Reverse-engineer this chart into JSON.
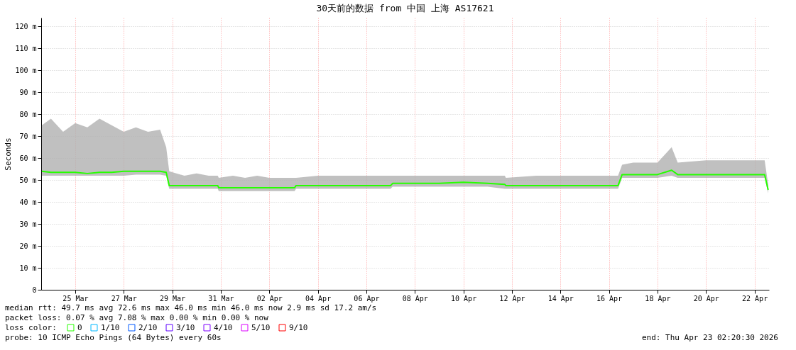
{
  "chart_data": {
    "type": "line",
    "title": "30天前的数据 from 中国 上海 AS17621",
    "ylabel": "Seconds",
    "x": [
      "2026-03-24T03:00",
      "2026-03-24T12:00",
      "2026-03-25T00:00",
      "2026-03-25T12:00",
      "2026-03-26T00:00",
      "2026-03-26T12:00",
      "2026-03-27T00:00",
      "2026-03-27T12:00",
      "2026-03-28T00:00",
      "2026-03-28T12:00",
      "2026-03-29T00:00",
      "2026-03-29T06:00",
      "2026-03-29T09:00",
      "2026-03-30T00:00",
      "2026-03-30T12:00",
      "2026-03-31T00:00",
      "2026-03-31T09:00",
      "2026-03-31T10:00",
      "2026-04-01T00:00",
      "2026-04-01T12:00",
      "2026-04-02T00:00",
      "2026-04-02T12:00",
      "2026-04-03T00:00",
      "2026-04-03T13:00",
      "2026-04-03T14:30",
      "2026-04-04T12:00",
      "2026-04-05T12:00",
      "2026-04-06T12:00",
      "2026-04-07T12:00",
      "2026-04-07T14:00",
      "2026-04-08T12:00",
      "2026-04-09T12:00",
      "2026-04-10T12:00",
      "2026-04-11T12:00",
      "2026-04-12T05:00",
      "2026-04-12T06:00",
      "2026-04-13T12:00",
      "2026-04-14T12:00",
      "2026-04-15T12:00",
      "2026-04-16T12:00",
      "2026-04-16T21:00",
      "2026-04-17T01:00",
      "2026-04-17T12:00",
      "2026-04-18T12:00",
      "2026-04-19T02:00",
      "2026-04-19T08:00",
      "2026-04-20T12:00",
      "2026-04-21T12:00",
      "2026-04-22T12:00",
      "2026-04-22T22:00",
      "2026-04-23T01:30"
    ],
    "xlim": [
      "2026-03-24T02:20",
      "2026-04-23T02:20"
    ],
    "xticks": [
      {
        "value": "2026-03-25T12:00",
        "label": "25 Mar"
      },
      {
        "value": "2026-03-27T12:00",
        "label": "27 Mar"
      },
      {
        "value": "2026-03-29T12:00",
        "label": "29 Mar"
      },
      {
        "value": "2026-03-31T12:00",
        "label": "31 Mar"
      },
      {
        "value": "2026-04-02T12:00",
        "label": "02 Apr"
      },
      {
        "value": "2026-04-04T12:00",
        "label": "04 Apr"
      },
      {
        "value": "2026-04-06T12:00",
        "label": "06 Apr"
      },
      {
        "value": "2026-04-08T12:00",
        "label": "08 Apr"
      },
      {
        "value": "2026-04-10T12:00",
        "label": "10 Apr"
      },
      {
        "value": "2026-04-12T12:00",
        "label": "12 Apr"
      },
      {
        "value": "2026-04-14T12:00",
        "label": "14 Apr"
      },
      {
        "value": "2026-04-16T12:00",
        "label": "16 Apr"
      },
      {
        "value": "2026-04-18T12:00",
        "label": "18 Apr"
      },
      {
        "value": "2026-04-20T12:00",
        "label": "20 Apr"
      },
      {
        "value": "2026-04-22T12:00",
        "label": "22 Apr"
      }
    ],
    "ylim": [
      0,
      124
    ],
    "yticks": [
      0,
      {
        "value": 10,
        "label": "10 m"
      },
      {
        "value": 20,
        "label": "20 m"
      },
      {
        "value": 30,
        "label": "30 m"
      },
      {
        "value": 40,
        "label": "40 m"
      },
      {
        "value": 50,
        "label": "50 m"
      },
      {
        "value": 60,
        "label": "60 m"
      },
      {
        "value": 70,
        "label": "70 m"
      },
      {
        "value": 80,
        "label": "80 m"
      },
      {
        "value": 90,
        "label": "90 m"
      },
      {
        "value": 100,
        "label": "100 m"
      },
      {
        "value": 110,
        "label": "110 m"
      },
      {
        "value": 120,
        "label": "120 m"
      }
    ],
    "grid": true,
    "legend": "bottom",
    "legend_title": "loss color:",
    "marker": "none",
    "line_style": "solid",
    "series": [
      {
        "name": "0",
        "color": "#26ff00",
        "values": [
          54,
          53.5,
          53.5,
          53.5,
          53,
          53.5,
          53.5,
          54,
          54,
          54,
          54,
          53.5,
          47.5,
          47.5,
          47.5,
          47.5,
          47.5,
          46.5,
          46.5,
          46.5,
          46.5,
          46.5,
          46.5,
          46.5,
          47.5,
          47.5,
          47.5,
          47.5,
          47.5,
          48.5,
          48.5,
          48.5,
          49,
          48.5,
          48,
          47.5,
          47.5,
          47.5,
          47.5,
          47.5,
          47.5,
          52.5,
          52.5,
          52.5,
          54.5,
          52.5,
          52.5,
          52.5,
          52.5,
          52.5,
          45.5
        ],
        "lower": [
          52,
          52,
          52,
          52,
          52,
          52,
          52,
          52,
          52.5,
          52.5,
          52.5,
          52,
          46,
          46,
          46,
          46,
          46,
          45,
          45,
          45,
          45,
          45,
          45,
          45,
          46,
          46,
          46,
          46,
          46,
          47,
          47,
          47,
          47,
          47,
          46,
          46,
          46,
          46,
          46,
          46,
          46,
          51,
          51,
          51,
          52,
          51,
          51,
          51,
          51,
          51,
          44
        ],
        "upper": [
          75,
          78,
          72,
          76,
          74,
          78,
          75,
          72,
          74,
          72,
          73,
          65,
          54,
          52,
          53,
          52,
          52,
          51,
          52,
          51,
          52,
          51,
          51,
          51,
          51,
          52,
          52,
          52,
          52,
          52,
          52,
          52,
          52,
          52,
          52,
          51,
          52,
          52,
          52,
          52,
          52,
          57,
          58,
          58,
          65,
          58,
          59,
          59,
          59,
          59,
          48
        ]
      },
      {
        "name": "1/10",
        "color": "#00b8ff",
        "values": [
          null,
          null,
          null,
          null,
          null,
          null,
          null,
          null,
          null,
          null,
          null,
          null,
          null,
          null,
          null,
          null,
          null,
          null,
          null,
          null,
          null,
          null,
          null,
          null,
          null,
          null,
          null,
          null,
          null,
          null,
          null,
          null,
          null,
          null,
          null,
          null,
          null,
          null,
          null,
          null,
          null,
          null,
          null,
          null,
          null,
          null,
          null,
          null,
          null,
          null,
          null
        ]
      },
      {
        "name": "2/10",
        "color": "#0059ff",
        "values": [
          null,
          null,
          null,
          null,
          null,
          null,
          null,
          null,
          null,
          null,
          null,
          null,
          null,
          null,
          null,
          null,
          null,
          null,
          null,
          null,
          null,
          null,
          null,
          null,
          null,
          null,
          null,
          null,
          null,
          null,
          null,
          null,
          null,
          null,
          null,
          null,
          null,
          null,
          null,
          null,
          null,
          null,
          null,
          null,
          null,
          null,
          null,
          null,
          null,
          null,
          null
        ]
      },
      {
        "name": "3/10",
        "color": "#5e00ff",
        "values": [
          null,
          null,
          null,
          null,
          null,
          null,
          null,
          null,
          null,
          null,
          null,
          null,
          null,
          null,
          null,
          null,
          null,
          null,
          null,
          null,
          null,
          null,
          null,
          null,
          null,
          null,
          null,
          null,
          null,
          null,
          null,
          null,
          null,
          null,
          null,
          null,
          null,
          null,
          null,
          null,
          null,
          null,
          null,
          null,
          null,
          null,
          null,
          null,
          null,
          null,
          null
        ]
      },
      {
        "name": "4/10",
        "color": "#7e00ff",
        "values": [
          null,
          null,
          null,
          null,
          null,
          null,
          null,
          null,
          null,
          null,
          null,
          null,
          null,
          null,
          null,
          null,
          null,
          null,
          null,
          null,
          null,
          null,
          null,
          null,
          null,
          null,
          null,
          null,
          null,
          null,
          null,
          null,
          null,
          null,
          null,
          null,
          null,
          null,
          null,
          null,
          null,
          null,
          null,
          null,
          null,
          null,
          null,
          null,
          null,
          null,
          null
        ]
      },
      {
        "name": "5/10",
        "color": "#dd00ff",
        "values": [
          null,
          null,
          null,
          null,
          null,
          null,
          null,
          null,
          null,
          null,
          null,
          null,
          null,
          null,
          null,
          null,
          null,
          null,
          null,
          null,
          null,
          null,
          null,
          null,
          null,
          null,
          null,
          null,
          null,
          null,
          null,
          null,
          null,
          null,
          null,
          null,
          null,
          null,
          null,
          null,
          null,
          null,
          null,
          null,
          null,
          null,
          null,
          null,
          null,
          null,
          null
        ]
      },
      {
        "name": "9/10",
        "color": "#ff0000",
        "values": [
          null,
          null,
          null,
          null,
          null,
          null,
          null,
          null,
          null,
          null,
          null,
          null,
          null,
          null,
          null,
          null,
          null,
          null,
          null,
          null,
          null,
          null,
          null,
          null,
          null,
          null,
          null,
          null,
          null,
          null,
          null,
          null,
          null,
          null,
          null,
          null,
          null,
          null,
          null,
          null,
          null,
          null,
          null,
          null,
          null,
          null,
          null,
          null,
          null,
          null,
          null
        ]
      }
    ],
    "annotations": [
      "median rtt:  49.7 ms avg  72.6 ms max  46.0 ms min  46.0 ms now  2.9 ms sd  17.2   am/s",
      "packet loss: 0.07 % avg  7.08 % max  0.00 % min  0.00 % now",
      "probe:       10 ICMP Echo Pings (64 Bytes) every 60s",
      "end: Thu Apr 23 02:20:30 2026"
    ]
  }
}
